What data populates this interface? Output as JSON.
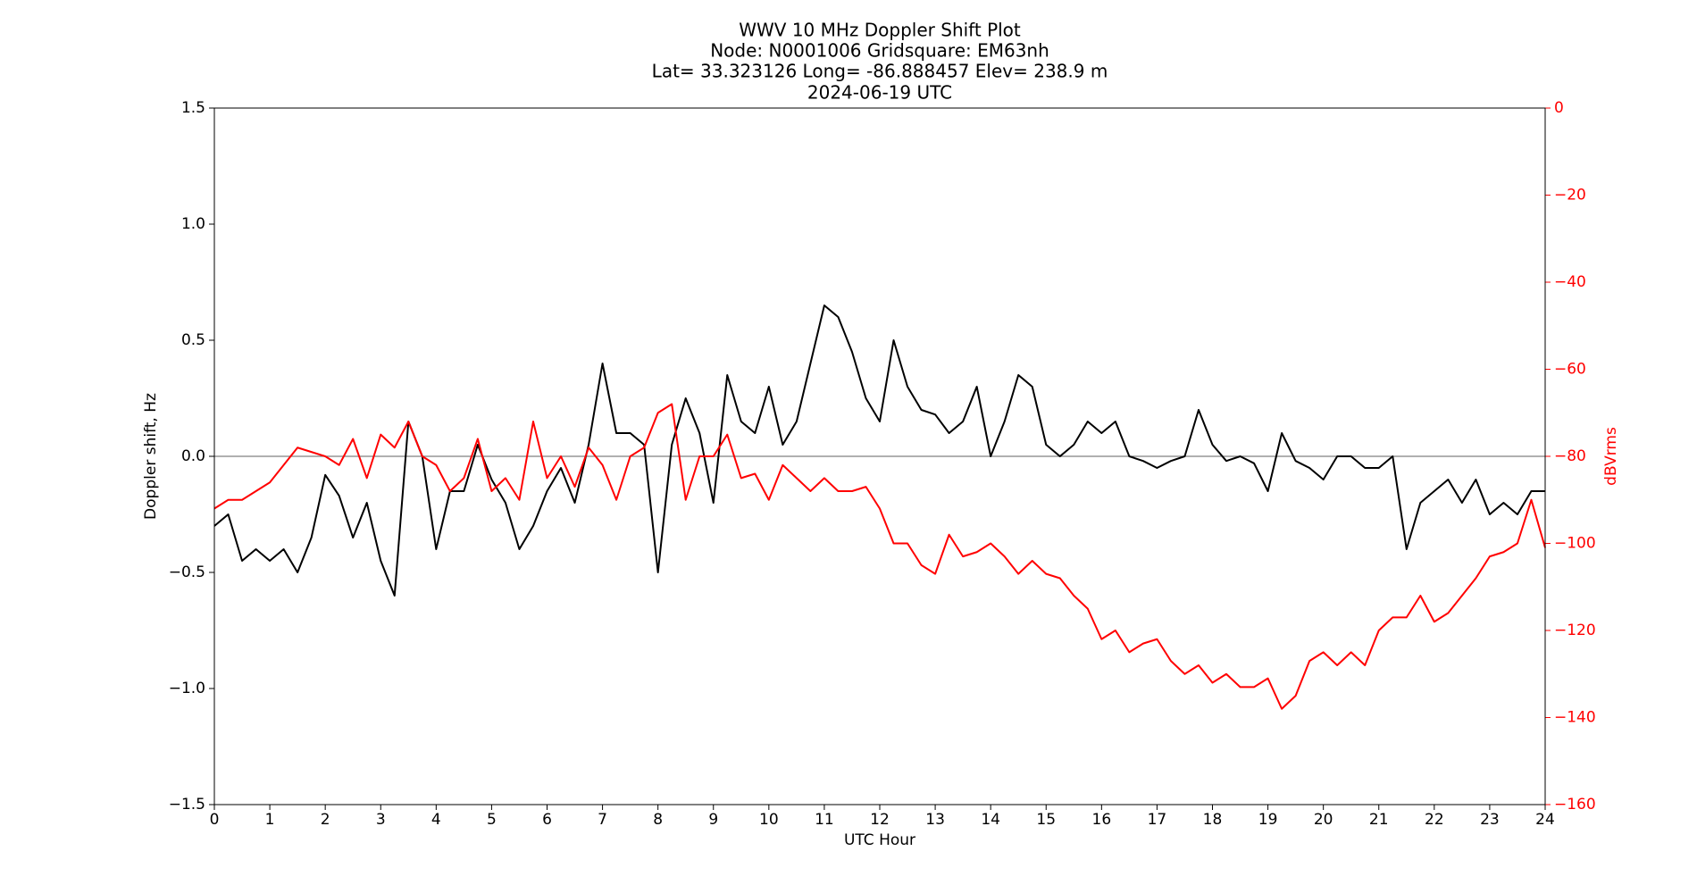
{
  "chart_data": {
    "type": "line",
    "title": [
      "WWV 10 MHz Doppler Shift Plot",
      "Node:  N0001006     Gridsquare:  EM63nh",
      "Lat= 33.323126    Long= -86.888457    Elev= 238.9 m",
      "2024-06-19  UTC"
    ],
    "x_label": "UTC Hour",
    "y_label": "Doppler shift, Hz",
    "y2_label": "dBVrms",
    "y2_color": "#ff0000",
    "x": [
      0,
      0.25,
      0.5,
      0.75,
      1,
      1.25,
      1.5,
      1.75,
      2,
      2.25,
      2.5,
      2.75,
      3,
      3.25,
      3.5,
      3.75,
      4,
      4.25,
      4.5,
      4.75,
      5,
      5.25,
      5.5,
      5.75,
      6,
      6.25,
      6.5,
      6.75,
      7,
      7.25,
      7.5,
      7.75,
      8,
      8.25,
      8.5,
      8.75,
      9,
      9.25,
      9.5,
      9.75,
      10,
      10.25,
      10.5,
      10.75,
      11,
      11.25,
      11.5,
      11.75,
      12,
      12.25,
      12.5,
      12.75,
      13,
      13.25,
      13.5,
      13.75,
      14,
      14.25,
      14.5,
      14.75,
      15,
      15.25,
      15.5,
      15.75,
      16,
      16.25,
      16.5,
      16.75,
      17,
      17.25,
      17.5,
      17.75,
      18,
      18.25,
      18.5,
      18.75,
      19,
      19.25,
      19.5,
      19.75,
      20,
      20.25,
      20.5,
      20.75,
      21,
      21.25,
      21.5,
      21.75,
      22,
      22.25,
      22.5,
      22.75,
      23,
      23.25,
      23.5,
      23.75,
      24
    ],
    "series": [
      {
        "name": "Doppler shift",
        "color": "#000000",
        "values": [
          -0.3,
          -0.25,
          -0.45,
          -0.4,
          -0.45,
          -0.4,
          -0.5,
          -0.35,
          -0.08,
          -0.17,
          -0.35,
          -0.2,
          -0.45,
          -0.6,
          0.15,
          0,
          -0.4,
          -0.15,
          -0.15,
          0.05,
          -0.1,
          -0.2,
          -0.4,
          -0.3,
          -0.15,
          -0.05,
          -0.2,
          0.05,
          0.4,
          0.1,
          0.1,
          0.05,
          -0.5,
          0.05,
          0.25,
          0.1,
          -0.2,
          0.35,
          0.15,
          0.1,
          0.3,
          0.05,
          0.15,
          0.4,
          0.65,
          0.6,
          0.45,
          0.25,
          0.15,
          0.5,
          0.3,
          0.2,
          0.18,
          0.1,
          0.15,
          0.3,
          0,
          0.15,
          0.35,
          0.3,
          0.05,
          0,
          0.05,
          0.15,
          0.1,
          0.15,
          0,
          -0.02,
          -0.05,
          -0.02,
          0,
          0.2,
          0.05,
          -0.02,
          0,
          -0.03,
          -0.15,
          0.1,
          -0.02,
          -0.05,
          -0.1,
          0,
          0,
          -0.05,
          -0.05,
          0,
          -0.4,
          -0.2,
          -0.15,
          -0.1,
          -0.2,
          -0.1,
          -0.25,
          -0.2,
          -0.25,
          -0.15,
          -0.15
        ]
      },
      {
        "name": "dBVrms",
        "color": "#ff0000",
        "axis": "y2",
        "values": [
          -92,
          -90,
          -90,
          -88,
          -86,
          -82,
          -78,
          -79,
          -80,
          -82,
          -76,
          -85,
          -75,
          -78,
          -72,
          -80,
          -82,
          -88,
          -85,
          -76,
          -88,
          -85,
          -90,
          -72,
          -85,
          -80,
          -87,
          -78,
          -82,
          -90,
          -80,
          -78,
          -70,
          -68,
          -90,
          -80,
          -80,
          -75,
          -85,
          -84,
          -90,
          -82,
          -85,
          -88,
          -85,
          -88,
          -88,
          -87,
          -92,
          -100,
          -100,
          -105,
          -107,
          -98,
          -103,
          -102,
          -100,
          -103,
          -107,
          -104,
          -107,
          -108,
          -112,
          -115,
          -122,
          -120,
          -125,
          -123,
          -122,
          -127,
          -130,
          -128,
          -132,
          -130,
          -133,
          -133,
          -131,
          -138,
          -135,
          -127,
          -125,
          -128,
          -125,
          -128,
          -120,
          -117,
          -117,
          -112,
          -118,
          -116,
          -112,
          -108,
          -103,
          -102,
          -100,
          -90,
          -101
        ]
      }
    ],
    "reference_line": {
      "value": 0,
      "color": "#808080"
    },
    "xlim": [
      0,
      24
    ],
    "xticks": [
      0,
      1,
      2,
      3,
      4,
      5,
      6,
      7,
      8,
      9,
      10,
      11,
      12,
      13,
      14,
      15,
      16,
      17,
      18,
      19,
      20,
      21,
      22,
      23,
      24
    ],
    "ylim": [
      -1.5,
      1.5
    ],
    "yticks": [
      {
        "value": -1.5,
        "label": "−1.5"
      },
      {
        "value": -1.0,
        "label": "−1.0"
      },
      {
        "value": -0.5,
        "label": "−0.5"
      },
      {
        "value": 0,
        "label": "0.0"
      },
      0.5,
      {
        "value": 1.0,
        "label": "1.0"
      },
      1.5
    ],
    "y2lim": [
      -160,
      0
    ],
    "y2ticks": [
      {
        "value": -160,
        "label": "−160"
      },
      {
        "value": -140,
        "label": "−140"
      },
      {
        "value": -120,
        "label": "−120"
      },
      {
        "value": -100,
        "label": "−100"
      },
      {
        "value": -80,
        "label": "−80"
      },
      {
        "value": -60,
        "label": "−60"
      },
      {
        "value": -40,
        "label": "−40"
      },
      {
        "value": -20,
        "label": "−20"
      },
      0
    ],
    "grid": false
  }
}
